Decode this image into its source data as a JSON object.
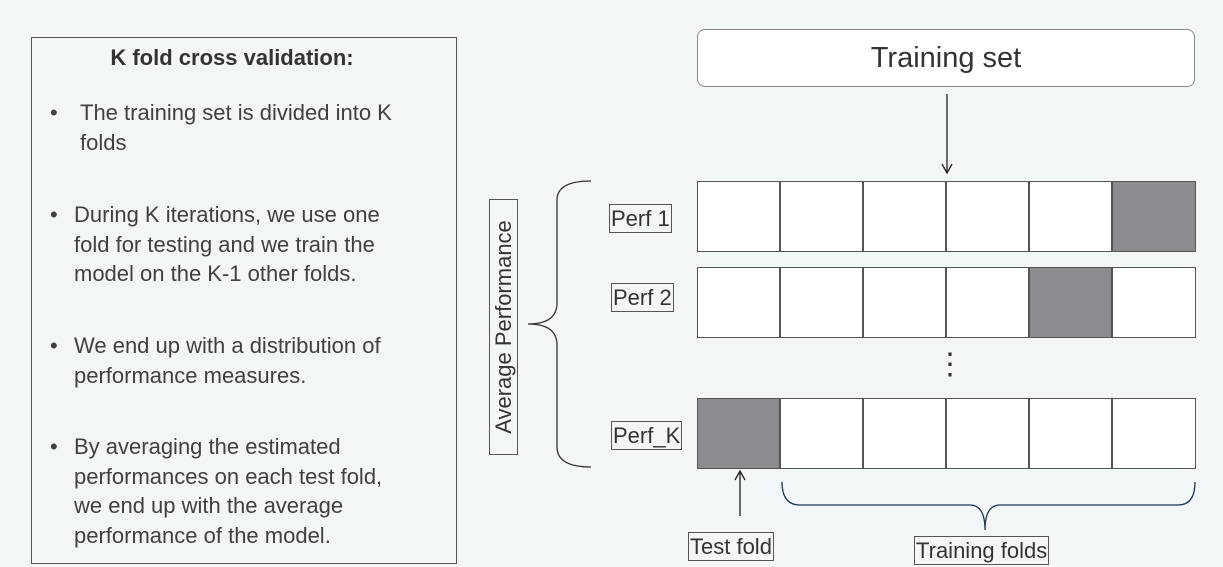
{
  "left_panel": {
    "title": "K fold cross validation:",
    "bullets": [
      {
        "lines": [
          "The training set is divided into  K",
          "folds"
        ]
      },
      {
        "lines": [
          "During K iterations, we use one",
          "fold for testing and we train the",
          "model on the K-1 other folds."
        ]
      },
      {
        "lines": [
          "We end up with a distribution of",
          "performance measures."
        ]
      },
      {
        "lines": [
          "By averaging the estimated",
          "performances on each test fold,",
          "we end up with the average",
          "performance of the model."
        ]
      }
    ],
    "bullet_char": "•"
  },
  "diagram": {
    "training_set_label": "Training set",
    "average_label": "Average Performance",
    "rows": [
      {
        "label": "Perf  1",
        "test_fold_index": 5
      },
      {
        "label": "Perf 2",
        "test_fold_index": 4
      },
      {
        "label": "Perf_K",
        "test_fold_index": 0
      }
    ],
    "folds_per_row": 6,
    "ellipsis": "⋮",
    "test_fold_label": "Test fold",
    "training_folds_label": "Training  folds",
    "colors": {
      "test_fold": "#8a8c8f",
      "train_fold": "#ffffff",
      "brace": "#1f3a5a"
    }
  }
}
